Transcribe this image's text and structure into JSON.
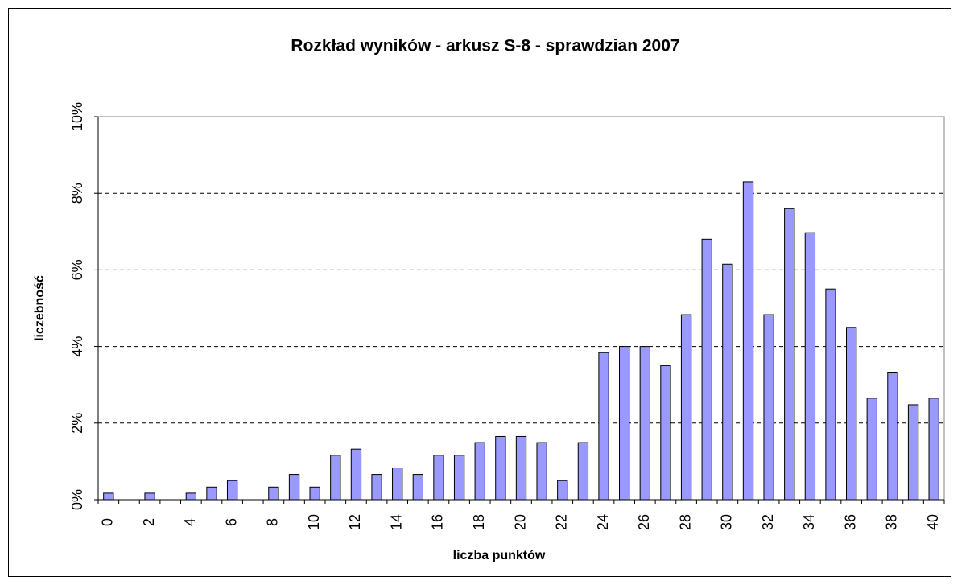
{
  "chart_data": {
    "type": "bar",
    "title": "Rozkład wyników - arkusz S-8 - sprawdzian 2007",
    "x_label": "liczba punktów",
    "y_label": "liczebność",
    "categories": [
      0,
      null,
      2,
      null,
      4,
      null,
      6,
      null,
      8,
      null,
      10,
      null,
      12,
      null,
      14,
      null,
      16,
      null,
      18,
      null,
      20,
      null,
      22,
      null,
      24,
      null,
      26,
      null,
      28,
      null,
      30,
      null,
      32,
      null,
      34,
      null,
      36,
      null,
      38,
      null,
      40
    ],
    "values": [
      0.17,
      0,
      0.17,
      0,
      0.17,
      0.33,
      0.5,
      0,
      0.33,
      0.66,
      0.33,
      1.16,
      1.32,
      0.66,
      0.83,
      0.66,
      1.16,
      1.16,
      1.49,
      1.65,
      1.65,
      1.49,
      0.5,
      1.49,
      3.84,
      4.0,
      4.0,
      3.5,
      4.83,
      6.8,
      6.15,
      8.3,
      4.83,
      7.6,
      6.97,
      5.5,
      4.5,
      2.65,
      3.33,
      2.48,
      2.65
    ],
    "color": "#9999ff",
    "ylim": [
      0,
      10
    ],
    "yticks": [
      {
        "value": 0,
        "label": "0%"
      },
      {
        "value": 2,
        "label": "2%"
      },
      {
        "value": 4,
        "label": "4%"
      },
      {
        "value": 6,
        "label": "6%"
      },
      {
        "value": 8,
        "label": "8%"
      },
      {
        "value": 10,
        "label": "10%"
      }
    ],
    "grid": true
  }
}
